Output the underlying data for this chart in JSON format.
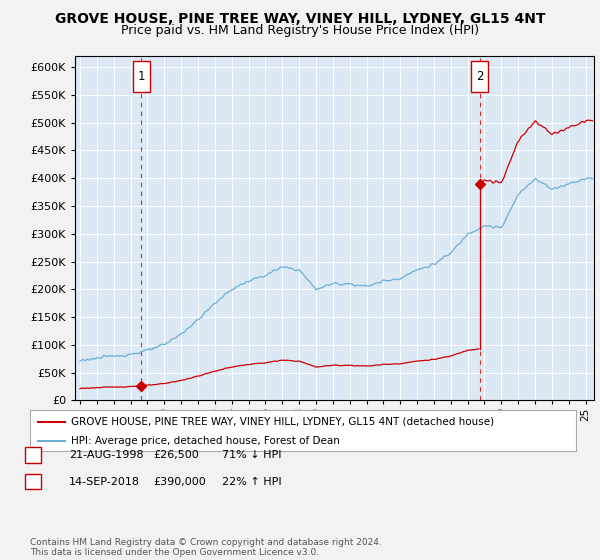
{
  "title": "GROVE HOUSE, PINE TREE WAY, VINEY HILL, LYDNEY, GL15 4NT",
  "subtitle": "Price paid vs. HM Land Registry's House Price Index (HPI)",
  "ylim": [
    0,
    620000
  ],
  "yticks": [
    0,
    50000,
    100000,
    150000,
    200000,
    250000,
    300000,
    350000,
    400000,
    450000,
    500000,
    550000,
    600000
  ],
  "xlim_start": 1994.7,
  "xlim_end": 2025.5,
  "hpi_color": "#6baed6",
  "price_color": "#cc0000",
  "dashed_line_color": "#cc0000",
  "background_color": "#f2f2f2",
  "plot_background": "#dce9f5",
  "sale1_date": 1998.645,
  "sale1_price": 26500,
  "sale1_label": "1",
  "sale2_date": 2018.708,
  "sale2_price": 390000,
  "sale2_label": "2",
  "legend_line1": "GROVE HOUSE, PINE TREE WAY, VINEY HILL, LYDNEY, GL15 4NT (detached house)",
  "legend_line2": "HPI: Average price, detached house, Forest of Dean",
  "table_row1": [
    "1",
    "21-AUG-1998",
    "£26,500",
    "71% ↓ HPI"
  ],
  "table_row2": [
    "2",
    "14-SEP-2018",
    "£390,000",
    "22% ↑ HPI"
  ],
  "footnote": "Contains HM Land Registry data © Crown copyright and database right 2024.\nThis data is licensed under the Open Government Licence v3.0.",
  "title_fontsize": 10,
  "subtitle_fontsize": 9
}
